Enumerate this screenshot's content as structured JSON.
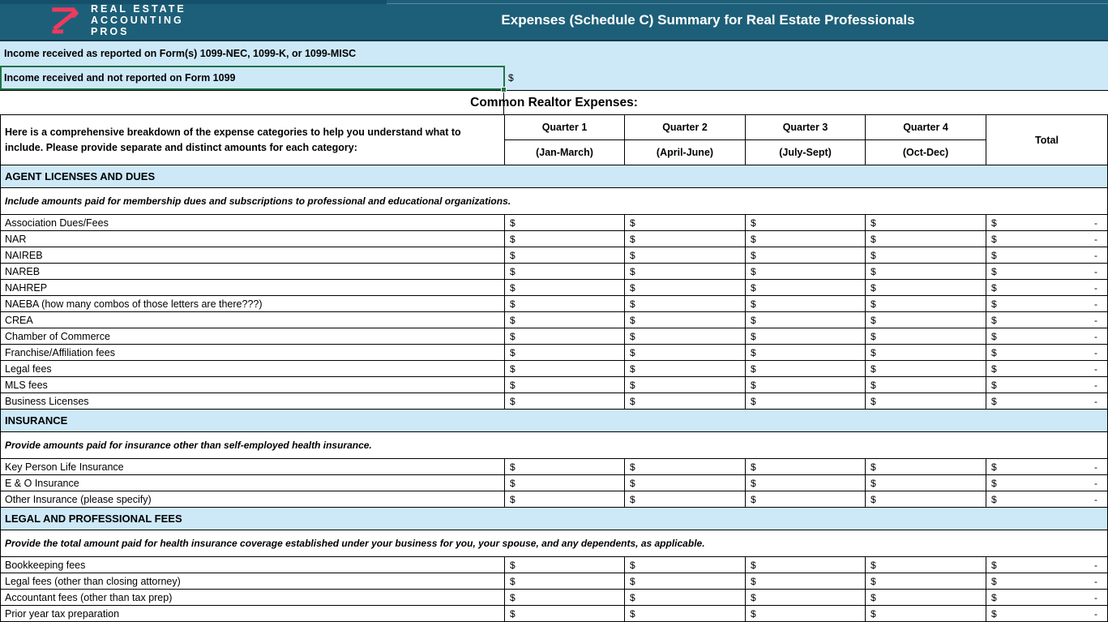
{
  "banner": {
    "logo": {
      "line1": "REAL ESTATE",
      "line2": "ACCOUNTING",
      "line3": "PROS"
    },
    "title": "Expenses (Schedule C) Summary for Real Estate Professionals"
  },
  "income": {
    "row1_label": "Income received as reported on Form(s) 1099-NEC, 1099-K, or 1099-MISC",
    "row2_label": "Income received and not reported on Form 1099",
    "row2_value_prefix": "$"
  },
  "common_title": "Common Realtor Expenses:",
  "table": {
    "intro": "Here is a comprehensive breakdown of the expense categories to help you understand what to include. Please provide separate and distinct amounts for each category:",
    "columns": [
      {
        "label": "Quarter 1",
        "sublabel": "(Jan-March)"
      },
      {
        "label": "Quarter 2",
        "sublabel": "(April-June)"
      },
      {
        "label": "Quarter 3",
        "sublabel": "(July-Sept)"
      },
      {
        "label": "Quarter 4",
        "sublabel": "(Oct-Dec)"
      }
    ],
    "total_label": "Total",
    "currency_symbol": "$",
    "empty_total": "-",
    "sections": [
      {
        "title": "AGENT LICENSES AND DUES",
        "description": "Include amounts paid for membership dues and subscriptions to professional and educational organizations.",
        "rows": [
          "Association Dues/Fees",
          "NAR",
          "NAIREB",
          "NAREB",
          "NAHREP",
          "NAEBA (how many combos of those letters are there???)",
          "CREA",
          "Chamber of Commerce",
          "Franchise/Affiliation fees",
          "Legal fees",
          "MLS fees",
          "Business Licenses"
        ]
      },
      {
        "title": "INSURANCE",
        "description": "Provide amounts paid for insurance other than self-employed health insurance.",
        "rows": [
          "Key Person Life Insurance",
          "E & O Insurance",
          "Other Insurance (please specify)"
        ]
      },
      {
        "title": "LEGAL AND PROFESSIONAL FEES",
        "description": "Provide the total amount paid for health insurance coverage established under your business for you, your spouse, and any dependents, as applicable.",
        "rows": [
          "Bookkeeping fees",
          "Legal fees (other than closing attorney)",
          "Accountant fees (other than tax prep)",
          "Prior year tax preparation"
        ]
      }
    ]
  },
  "colors": {
    "banner_teal": "#1d5f78",
    "logo_pink": "#ee3a5e",
    "band_blue": "#cde9f8",
    "selection_green": "#217346"
  }
}
